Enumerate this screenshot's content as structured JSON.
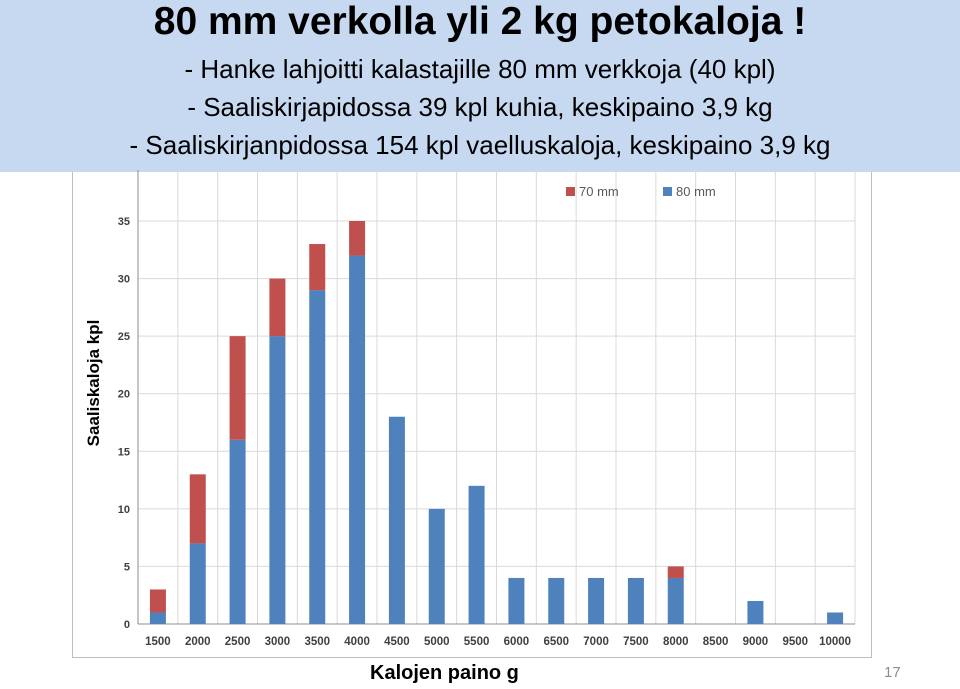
{
  "slide": {
    "title": "80 mm verkolla yli 2 kg petokaloja !",
    "bullets": [
      "- Hanke lahjoitti kalastajille 80 mm verkkoja (40 kpl)",
      "- Saaliskirjapidossa 39 kpl kuhia, keskipaino 3,9 kg",
      "- Saaliskirjanpidossa 154 kpl vaelluskaloja, keskipaino 3,9 kg"
    ],
    "page_number": "17"
  },
  "chart_data": {
    "type": "bar",
    "stacked": true,
    "title": "",
    "xlabel": "Kalojen paino g",
    "ylabel": "Saaliskaloja kpl",
    "categories": [
      "1500",
      "2000",
      "2500",
      "3000",
      "3500",
      "4000",
      "4500",
      "5000",
      "5500",
      "6000",
      "6500",
      "7000",
      "7500",
      "8000",
      "8500",
      "9000",
      "9500",
      "10000"
    ],
    "ylim": [
      0,
      35
    ],
    "yticks": [
      "0",
      "5",
      "10",
      "15",
      "20",
      "25",
      "30",
      "35"
    ],
    "grid": true,
    "legend_position": "top-right",
    "series": [
      {
        "name": "80 mm",
        "color": "#4f81bd",
        "values": [
          1,
          7,
          16,
          25,
          29,
          32,
          18,
          10,
          12,
          4,
          4,
          4,
          4,
          4,
          0,
          2,
          0,
          1
        ]
      },
      {
        "name": "70 mm",
        "color": "#c0504d",
        "values": [
          2,
          6,
          9,
          5,
          4,
          3,
          0,
          0,
          0,
          0,
          0,
          0,
          0,
          1,
          0,
          0,
          0,
          0
        ]
      }
    ],
    "legend_order": [
      "70 mm",
      "80 mm"
    ]
  }
}
